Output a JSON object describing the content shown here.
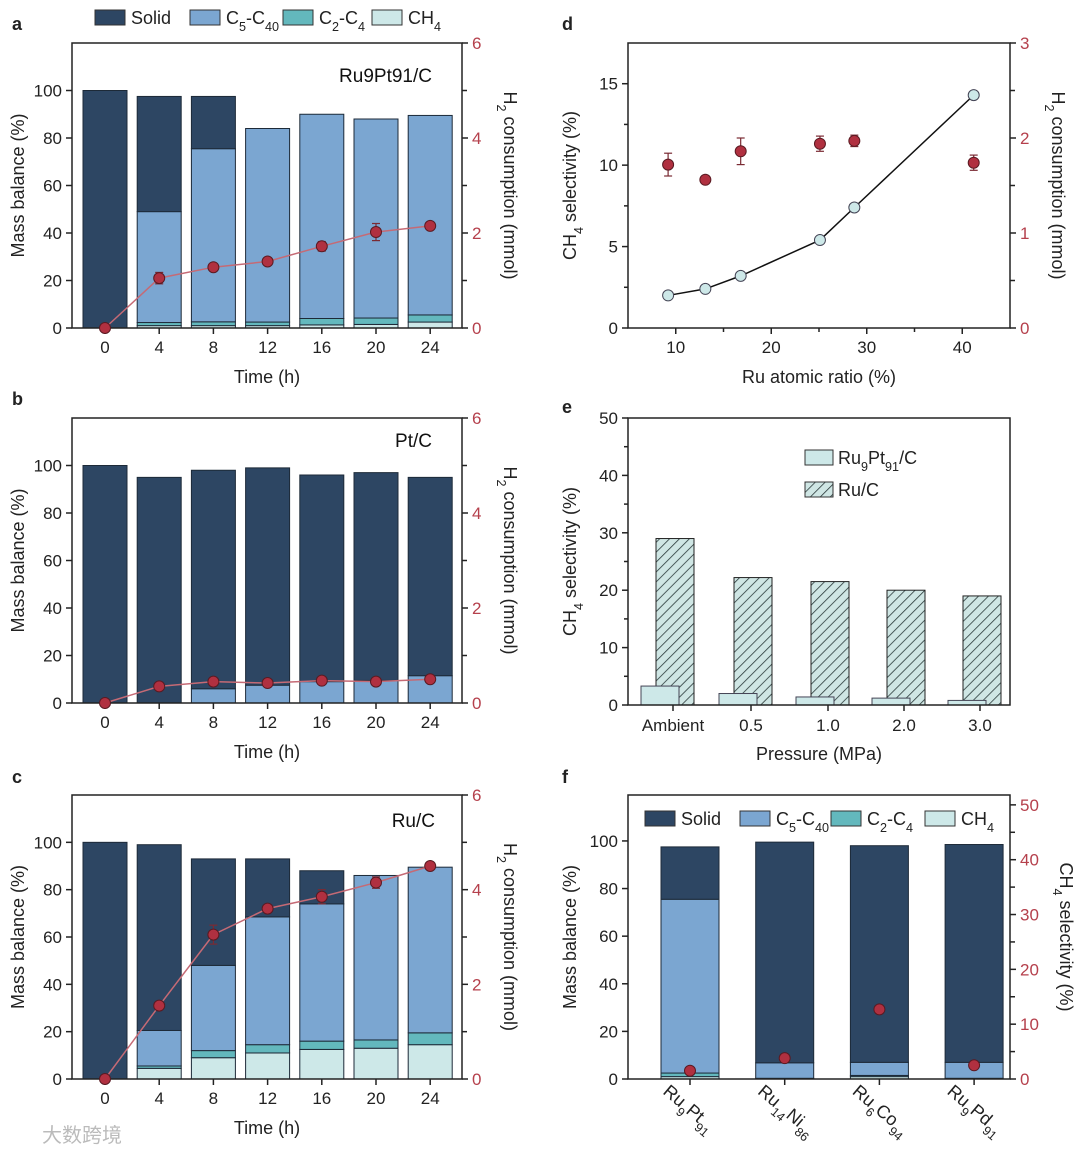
{
  "colors": {
    "solid": "#2d4663",
    "c5c40": "#7ba6d1",
    "c2c4": "#63b8bd",
    "ch4": "#cde8e8",
    "red": "#b5404c",
    "redpt": "#b03040"
  },
  "watermark": "大数跨境",
  "chart_data": [
    {
      "panel": "a",
      "type": "bar",
      "stacked": true,
      "annotation": "Ru9Pt91/C",
      "legend": [
        "Solid",
        "C5-C40",
        "C2-C4",
        "CH4"
      ],
      "categories": [
        "0",
        "4",
        "8",
        "12",
        "16",
        "20",
        "24"
      ],
      "xlabel": "Time (h)",
      "ylabel": "Mass balance (%)",
      "y2label": "H2 consumption (mmol)",
      "yticks": [
        "0",
        "20",
        "40",
        "60",
        "80",
        "100"
      ],
      "y2ticks": [
        "0",
        "2",
        "4",
        "6"
      ],
      "ylim": [
        0,
        120
      ],
      "y2lim": [
        0,
        6
      ],
      "series": [
        {
          "name": "CH4",
          "values": [
            0,
            1,
            1,
            1,
            1.3,
            1.5,
            2.5
          ]
        },
        {
          "name": "C2-C4",
          "values": [
            0,
            1.3,
            1.6,
            1.5,
            2.7,
            2.7,
            3
          ]
        },
        {
          "name": "C5-C40",
          "values": [
            0,
            46.7,
            72.9,
            81.5,
            86,
            83.8,
            84
          ]
        },
        {
          "name": "Solid",
          "values": [
            100,
            48.5,
            22,
            0,
            0,
            0,
            0
          ]
        }
      ],
      "line": {
        "name": "H2 consumption",
        "values": [
          0,
          1.05,
          1.28,
          1.4,
          1.72,
          2.02,
          2.15
        ],
        "errors": [
          0,
          0.12,
          0,
          0,
          0.1,
          0.18,
          0
        ]
      }
    },
    {
      "panel": "b",
      "type": "bar",
      "stacked": true,
      "annotation": "Pt/C",
      "categories": [
        "0",
        "4",
        "8",
        "12",
        "16",
        "20",
        "24"
      ],
      "xlabel": "Time (h)",
      "ylabel": "Mass balance (%)",
      "y2label": "H2 consumption (mmol)",
      "yticks": [
        "0",
        "20",
        "40",
        "60",
        "80",
        "100"
      ],
      "y2ticks": [
        "0",
        "2",
        "4",
        "6"
      ],
      "ylim": [
        0,
        120
      ],
      "y2lim": [
        0,
        6
      ],
      "series": [
        {
          "name": "CH4",
          "values": [
            0,
            0,
            0,
            0,
            0,
            0,
            0
          ]
        },
        {
          "name": "C2-C4",
          "values": [
            0,
            0,
            0,
            0,
            0,
            0,
            0
          ]
        },
        {
          "name": "C5-C40",
          "values": [
            0,
            0,
            6,
            7.5,
            9,
            9.5,
            11.5
          ]
        },
        {
          "name": "Solid",
          "values": [
            100,
            95,
            92,
            91.5,
            87,
            87.5,
            83.5
          ]
        }
      ],
      "line": {
        "name": "H2 consumption",
        "values": [
          0,
          0.35,
          0.45,
          0.42,
          0.47,
          0.45,
          0.5
        ],
        "errors": [
          0,
          0,
          0,
          0,
          0,
          0,
          0
        ]
      }
    },
    {
      "panel": "c",
      "type": "bar",
      "stacked": true,
      "annotation": "Ru/C",
      "categories": [
        "0",
        "4",
        "8",
        "12",
        "16",
        "20",
        "24"
      ],
      "xlabel": "Time (h)",
      "ylabel": "Mass balance (%)",
      "y2label": "H2 consumption (mmol)",
      "yticks": [
        "0",
        "20",
        "40",
        "60",
        "80",
        "100"
      ],
      "y2ticks": [
        "0",
        "2",
        "4",
        "6"
      ],
      "ylim": [
        0,
        120
      ],
      "y2lim": [
        0,
        6
      ],
      "series": [
        {
          "name": "CH4",
          "values": [
            0,
            4.5,
            9,
            11,
            12.5,
            13,
            14.5
          ]
        },
        {
          "name": "C2-C4",
          "values": [
            0,
            1,
            3,
            3.5,
            3.5,
            3.5,
            5
          ]
        },
        {
          "name": "C5-C40",
          "values": [
            0,
            15,
            36,
            54,
            58,
            69.5,
            70
          ]
        },
        {
          "name": "Solid",
          "values": [
            100,
            78.5,
            45,
            24.5,
            14,
            0,
            0
          ]
        }
      ],
      "line": {
        "name": "H2 consumption",
        "values": [
          0,
          1.55,
          3.05,
          3.6,
          3.85,
          4.15,
          4.5
        ],
        "errors": [
          0,
          0,
          0.2,
          0,
          0.15,
          0.12,
          0
        ]
      }
    },
    {
      "panel": "d",
      "type": "scatter",
      "xlabel": "Ru atomic ratio (%)",
      "ylabel": "CH4 selectivity (%)",
      "y2label": "H2 consumption (mmol)",
      "xticks": [
        "10",
        "20",
        "30",
        "40"
      ],
      "yticks": [
        "0",
        "5",
        "10",
        "15"
      ],
      "y2ticks": [
        "0",
        "1",
        "2",
        "3"
      ],
      "xlim": [
        5,
        45
      ],
      "ylim": [
        0,
        17.5
      ],
      "y2lim": [
        0,
        3
      ],
      "x": [
        9.2,
        13.1,
        16.8,
        25.1,
        28.7,
        41.2
      ],
      "series": [
        {
          "name": "CH4 selectivity",
          "values": [
            2.0,
            2.4,
            3.2,
            5.4,
            7.4,
            14.3
          ]
        },
        {
          "name": "H2 consumption",
          "values": [
            1.72,
            1.56,
            1.86,
            1.94,
            1.97,
            1.74
          ],
          "errors": [
            0.12,
            0.04,
            0.14,
            0.08,
            0.06,
            0.08
          ]
        }
      ]
    },
    {
      "panel": "e",
      "type": "bar",
      "categories": [
        "Ambient",
        "0.5",
        "1.0",
        "2.0",
        "3.0"
      ],
      "xlabel": "Pressure (MPa)",
      "ylabel": "CH4 selectivity (%)",
      "yticks": [
        "0",
        "10",
        "20",
        "30",
        "40",
        "50"
      ],
      "ylim": [
        0,
        50
      ],
      "legend": [
        "Ru9Pt91/C",
        "Ru/C"
      ],
      "legend_position": "top-right",
      "series": [
        {
          "name": "Ru9Pt91/C",
          "values": [
            3.3,
            2.0,
            1.4,
            1.2,
            0.8
          ]
        },
        {
          "name": "Ru/C",
          "values": [
            29,
            22.2,
            21.5,
            20,
            19
          ]
        }
      ]
    },
    {
      "panel": "f",
      "type": "bar",
      "stacked": true,
      "legend": [
        "Solid",
        "C5-C40",
        "C2-C4",
        "CH4"
      ],
      "categories": [
        "Ru9Pt91",
        "Ru14Ni86",
        "Ru6Co94",
        "Ru9Pd91"
      ],
      "ylabel": "Mass balance (%)",
      "y2label": "CH4 selectivity (%)",
      "yticks": [
        "0",
        "20",
        "40",
        "60",
        "80",
        "100"
      ],
      "y2ticks": [
        "0",
        "10",
        "20",
        "30",
        "40",
        "50"
      ],
      "ylim": [
        0,
        119.3
      ],
      "y2lim": [
        0,
        51.8
      ],
      "series": [
        {
          "name": "CH4",
          "values": [
            1,
            0.3,
            1,
            0.3
          ]
        },
        {
          "name": "C2-C4",
          "values": [
            1.5,
            0,
            0.5,
            0
          ]
        },
        {
          "name": "C5-C40",
          "values": [
            73,
            6.5,
            5.5,
            6.7
          ]
        },
        {
          "name": "Solid",
          "values": [
            22,
            92.7,
            91,
            91.5
          ]
        }
      ],
      "points": {
        "name": "CH4 selectivity",
        "values": [
          1.5,
          3.8,
          12.7,
          2.5
        ]
      }
    }
  ]
}
